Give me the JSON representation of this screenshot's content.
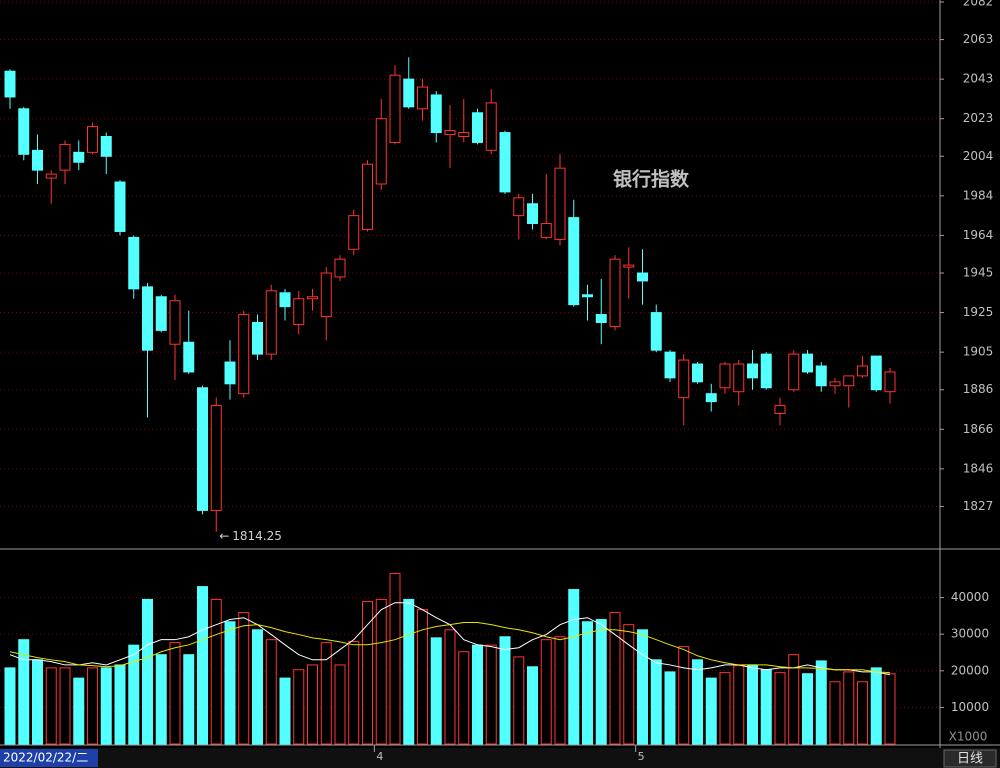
{
  "chart_data": [
    {
      "type": "candlestick",
      "title": "银行指数",
      "categories": [
        "2022/02/22/二",
        null,
        null,
        null,
        null,
        null,
        null,
        null,
        null,
        null,
        null,
        null,
        null,
        null,
        null,
        null,
        null,
        null,
        null,
        null,
        null,
        null,
        null,
        null,
        null,
        null,
        null,
        "4",
        null,
        null,
        null,
        null,
        null,
        null,
        null,
        null,
        null,
        null,
        null,
        null,
        null,
        null,
        null,
        null,
        null,
        null,
        "5",
        null,
        null,
        null,
        null,
        null,
        null,
        null,
        null,
        null,
        null,
        null,
        null,
        null,
        null,
        null,
        null,
        null,
        null
      ],
      "open": [
        2047,
        2028,
        2007,
        1993,
        1997,
        2006,
        2006,
        2014,
        1991,
        1963,
        1938,
        1933,
        1909,
        1910,
        1887,
        1825,
        1900,
        1884,
        1920,
        1904,
        1935,
        1919,
        1932,
        1923,
        1943,
        1957,
        1967,
        1990,
        2011,
        2043,
        2028,
        2035,
        2015,
        2014,
        2026,
        2007,
        2016,
        1974,
        1980,
        1963,
        1962,
        1973,
        1934,
        1924,
        1918,
        1948,
        1945,
        1925,
        1905,
        1882,
        1899,
        1884,
        1887,
        1885,
        1899,
        1904,
        1874,
        1886,
        1904,
        1898,
        1888,
        1888,
        1893,
        1903,
        1885
      ],
      "high": [
        2048,
        2029,
        2015,
        1997,
        2012,
        2012,
        2021,
        2016,
        1992,
        1964,
        1940,
        1934,
        1934,
        1926,
        1888,
        1882,
        1911,
        1926,
        1924,
        1939,
        1937,
        1936,
        1937,
        1948,
        1954,
        1977,
        2002,
        2033,
        2050,
        2054,
        2043,
        2037,
        2030,
        2033,
        2028,
        2038,
        2017,
        1985,
        1985,
        1995,
        2005,
        1982,
        1939,
        1942,
        1954,
        1958,
        1957,
        1929,
        1906,
        1904,
        1900,
        1889,
        1900,
        1901,
        1906,
        1905,
        1882,
        1906,
        1906,
        1900,
        1892,
        1893,
        1903,
        1903,
        1897
      ],
      "low": [
        2028,
        2002,
        1990,
        1980,
        1990,
        1997,
        2005,
        1995,
        1964,
        1932,
        1872,
        1915,
        1891,
        1894,
        1823,
        1814.25,
        1881,
        1882,
        1901,
        1901,
        1921,
        1914,
        1926,
        1911,
        1941,
        1954,
        1966,
        1987,
        2010,
        2028,
        2022,
        2011,
        1998,
        2011,
        2010,
        2005,
        1985,
        1962,
        1967,
        1962,
        1959,
        1928,
        1921,
        1909,
        1916,
        1932,
        1929,
        1905,
        1890,
        1868,
        1889,
        1875,
        1884,
        1878,
        1886,
        1886,
        1868,
        1885,
        1894,
        1885,
        1884,
        1877,
        1892,
        1885,
        1879
      ],
      "close": [
        2034,
        2005,
        1997,
        1995,
        2010,
        2001,
        2019,
        2004,
        1966,
        1937,
        1906,
        1916,
        1931,
        1895,
        1825,
        1878,
        1889,
        1924,
        1904,
        1936,
        1928,
        1932,
        1933,
        1945,
        1952,
        1974,
        2000,
        2023,
        2045,
        2029,
        2039,
        2016,
        2017,
        2016,
        2011,
        2031,
        1986,
        1983,
        1970,
        1970,
        1998,
        1929,
        1933,
        1920,
        1952,
        1949,
        1941,
        1906,
        1892,
        1901,
        1890,
        1880,
        1899,
        1899,
        1892,
        1887,
        1878,
        1904,
        1895,
        1888,
        1890,
        1893,
        1898,
        1886,
        1895
      ],
      "up_color": "#ff3232",
      "down_color": "#54ffff",
      "title_color": "#e6c800",
      "ylim": [
        1806,
        2083
      ],
      "yticks": [
        1827,
        1846,
        1866,
        1886,
        1905,
        1925,
        1945,
        1964,
        1984,
        2004,
        2023,
        2043,
        2063,
        2082
      ],
      "grid": true,
      "period_label": "日线"
    },
    {
      "type": "volume",
      "values": [
        20800,
        28500,
        23000,
        20800,
        20800,
        18000,
        20800,
        20800,
        21600,
        27000,
        39500,
        24400,
        27700,
        24400,
        43000,
        39500,
        33400,
        35900,
        31200,
        28500,
        18000,
        20300,
        21600,
        27700,
        21600,
        28000,
        38900,
        39500,
        46600,
        39500,
        36700,
        29000,
        31200,
        25200,
        27000,
        27000,
        29300,
        23800,
        21100,
        28500,
        29300,
        42200,
        33400,
        34000,
        35900,
        32600,
        31200,
        23000,
        19700,
        26600,
        23000,
        18000,
        19500,
        21400,
        21600,
        20300,
        19500,
        24400,
        19200,
        22700,
        17000,
        19700,
        17000,
        20800,
        19200
      ],
      "lines": [
        {
          "color": "#ffffff",
          "values": [
            24400,
            23000,
            23000,
            22500,
            21600,
            21600,
            22200,
            21600,
            23000,
            24400,
            27100,
            28500,
            28500,
            29300,
            31200,
            32600,
            34000,
            34500,
            32600,
            29900,
            27100,
            24400,
            23000,
            23000,
            25800,
            28500,
            32600,
            36700,
            38600,
            38600,
            36700,
            34500,
            32600,
            28500,
            27100,
            26600,
            25800,
            26300,
            28500,
            29900,
            32600,
            34000,
            34500,
            32600,
            29900,
            27100,
            24400,
            22200,
            21600,
            20800,
            20300,
            20800,
            21600,
            21600,
            20800,
            20300,
            20800,
            20800,
            21600,
            20800,
            20300,
            20300,
            19700,
            19700,
            18900
          ]
        },
        {
          "color": "#e6e600",
          "values": [
            25200,
            24400,
            23600,
            23000,
            22500,
            21600,
            21400,
            21100,
            21400,
            22500,
            23600,
            25200,
            26300,
            27100,
            28500,
            29900,
            31200,
            32300,
            32600,
            31800,
            30700,
            29900,
            29000,
            28500,
            27900,
            27100,
            27100,
            27700,
            28500,
            29900,
            31200,
            32100,
            32600,
            33200,
            33200,
            32600,
            31800,
            31200,
            30400,
            29300,
            28500,
            29300,
            30400,
            31200,
            31200,
            30700,
            29900,
            28500,
            27100,
            25800,
            24100,
            23000,
            22200,
            21600,
            21600,
            21600,
            21100,
            20800,
            20800,
            20600,
            20300,
            20300,
            20300,
            19700,
            19500
          ]
        }
      ],
      "ylim": [
        0,
        53000
      ],
      "yticks": [
        10000,
        20000,
        30000,
        40000
      ],
      "grid": true,
      "unit_label": "X1000"
    }
  ]
}
